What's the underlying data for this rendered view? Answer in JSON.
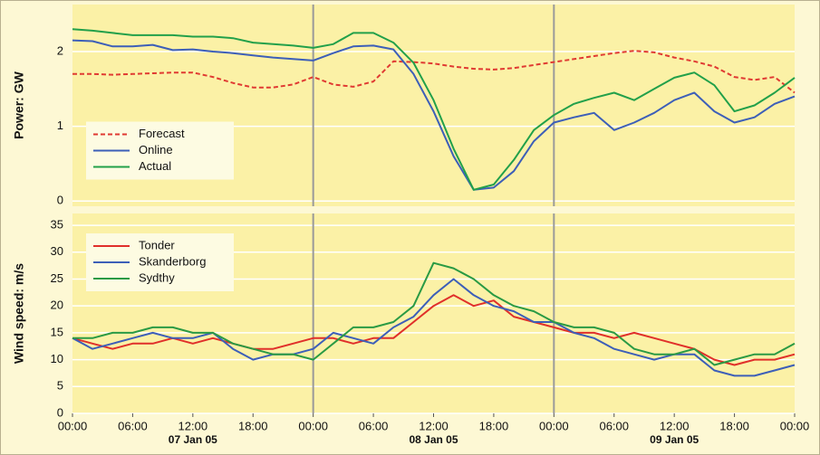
{
  "chart_data": [
    {
      "type": "line",
      "ylabel": "Power: GW",
      "x": [
        0,
        2,
        4,
        6,
        8,
        10,
        12,
        14,
        16,
        18,
        20,
        22,
        24,
        26,
        28,
        30,
        32,
        34,
        36,
        38,
        40,
        42,
        44,
        46,
        48,
        50,
        52,
        54,
        56,
        58,
        60,
        62,
        64,
        66,
        68,
        70,
        72
      ],
      "xlim": [
        0,
        72
      ],
      "ylim": [
        -0.07,
        2.63
      ],
      "yticks": [
        0,
        1,
        2
      ],
      "grid": true,
      "vlines": [
        24,
        48
      ],
      "legend": "center left",
      "series": [
        {
          "name": "Forecast",
          "color": "#e03a32",
          "style": "dashed",
          "values": [
            1.7,
            1.7,
            1.69,
            1.7,
            1.71,
            1.72,
            1.72,
            1.66,
            1.58,
            1.52,
            1.52,
            1.56,
            1.66,
            1.56,
            1.53,
            1.6,
            1.87,
            1.86,
            1.84,
            1.8,
            1.77,
            1.76,
            1.78,
            1.82,
            1.86,
            1.9,
            1.94,
            1.98,
            2.01,
            1.99,
            1.92,
            1.87,
            1.8,
            1.66,
            1.62,
            1.66,
            1.45
          ]
        },
        {
          "name": "Online",
          "color": "#3d5fb8",
          "values": [
            2.15,
            2.14,
            2.07,
            2.07,
            2.09,
            2.02,
            2.03,
            2.0,
            1.98,
            1.95,
            1.92,
            1.9,
            1.88,
            1.98,
            2.07,
            2.08,
            2.03,
            1.7,
            1.2,
            0.6,
            0.15,
            0.18,
            0.4,
            0.8,
            1.05,
            1.12,
            1.18,
            0.95,
            1.05,
            1.18,
            1.35,
            1.45,
            1.2,
            1.05,
            1.12,
            1.3,
            1.4
          ]
        },
        {
          "name": "Actual",
          "color": "#22a04a",
          "values": [
            2.3,
            2.28,
            2.25,
            2.22,
            2.22,
            2.22,
            2.2,
            2.2,
            2.18,
            2.12,
            2.1,
            2.08,
            2.05,
            2.1,
            2.25,
            2.25,
            2.12,
            1.85,
            1.35,
            0.7,
            0.15,
            0.22,
            0.55,
            0.95,
            1.15,
            1.3,
            1.38,
            1.45,
            1.35,
            1.5,
            1.65,
            1.72,
            1.55,
            1.2,
            1.28,
            1.45,
            1.65
          ]
        }
      ]
    },
    {
      "type": "line",
      "ylabel": "Wind speed: m/s",
      "x": [
        0,
        2,
        4,
        6,
        8,
        10,
        12,
        14,
        16,
        18,
        20,
        22,
        24,
        26,
        28,
        30,
        32,
        34,
        36,
        38,
        40,
        42,
        44,
        46,
        48,
        50,
        52,
        54,
        56,
        58,
        60,
        62,
        64,
        66,
        68,
        70,
        72
      ],
      "xlim": [
        0,
        72
      ],
      "ylim": [
        0,
        37.2
      ],
      "yticks": [
        0,
        5,
        10,
        15,
        20,
        25,
        30,
        35
      ],
      "grid": true,
      "vlines": [
        24,
        48
      ],
      "legend": "upper left",
      "xticks": [
        {
          "value": 0,
          "label": "00:00"
        },
        {
          "value": 6,
          "label": "06:00"
        },
        {
          "value": 12,
          "label": "12:00"
        },
        {
          "value": 18,
          "label": "18:00"
        },
        {
          "value": 24,
          "label": "00:00"
        },
        {
          "value": 30,
          "label": "06:00"
        },
        {
          "value": 36,
          "label": "12:00"
        },
        {
          "value": 42,
          "label": "18:00"
        },
        {
          "value": 48,
          "label": "00:00"
        },
        {
          "value": 54,
          "label": "06:00"
        },
        {
          "value": 60,
          "label": "12:00"
        },
        {
          "value": 66,
          "label": "18:00"
        },
        {
          "value": 72,
          "label": "00:00"
        }
      ],
      "day_labels": [
        {
          "value": 12,
          "label": "07 Jan 05"
        },
        {
          "value": 36,
          "label": "08 Jan 05"
        },
        {
          "value": 60,
          "label": "09 Jan 05"
        }
      ],
      "series": [
        {
          "name": "Tonder",
          "color": "#e0302a",
          "values": [
            14,
            13,
            12,
            13,
            13,
            14,
            13,
            14,
            13,
            12,
            12,
            13,
            14,
            14,
            13,
            14,
            14,
            17,
            20,
            22,
            20,
            21,
            18,
            17,
            16,
            15,
            15,
            14,
            15,
            14,
            13,
            12,
            10,
            9,
            10,
            10,
            11
          ]
        },
        {
          "name": "Skanderborg",
          "color": "#3d5fb8",
          "values": [
            14,
            12,
            13,
            14,
            15,
            14,
            14,
            15,
            12,
            10,
            11,
            11,
            12,
            15,
            14,
            13,
            16,
            18,
            22,
            25,
            22,
            20,
            19,
            17,
            17,
            15,
            14,
            12,
            11,
            10,
            11,
            11,
            8,
            7,
            7,
            8,
            9
          ]
        },
        {
          "name": "Sydthy",
          "color": "#2a9a44",
          "values": [
            14,
            14,
            15,
            15,
            16,
            16,
            15,
            15,
            13,
            12,
            11,
            11,
            10,
            13,
            16,
            16,
            17,
            20,
            28,
            27,
            25,
            22,
            20,
            19,
            17,
            16,
            16,
            15,
            12,
            11,
            11,
            12,
            9,
            10,
            11,
            11,
            13
          ]
        }
      ]
    }
  ]
}
